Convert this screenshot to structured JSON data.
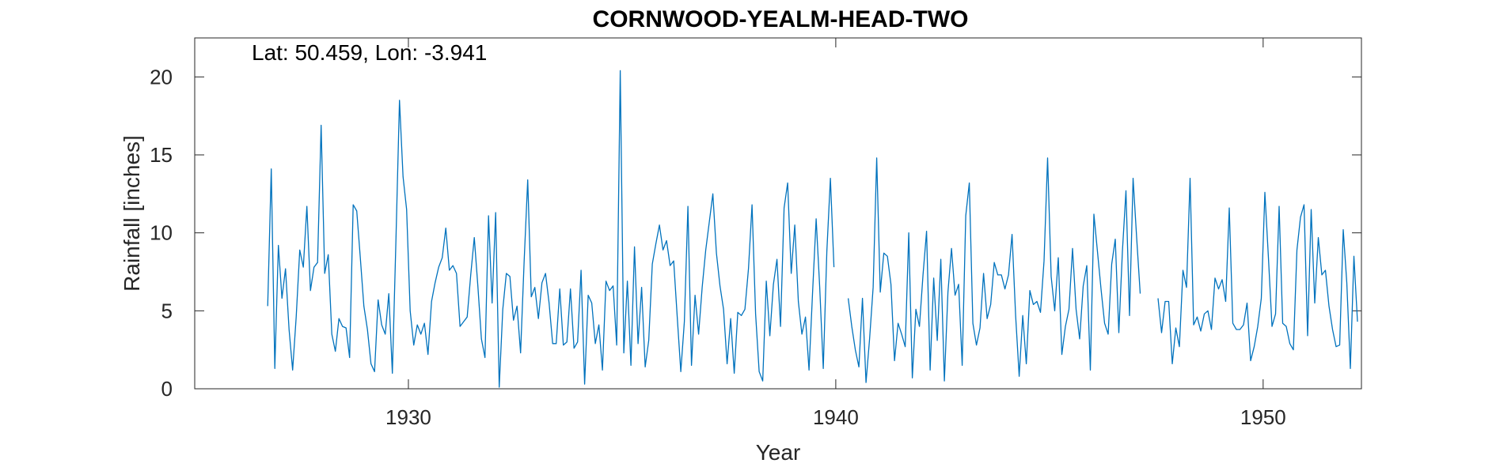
{
  "chart_data": {
    "type": "line",
    "title": "CORNWOOD-YEALM-HEAD-TWO",
    "annotation": "Lat: 50.459, Lon: -3.941",
    "xlabel": "Year",
    "ylabel": "Rainfall [inches]",
    "xlim": [
      1925.0,
      1952.3
    ],
    "ylim": [
      0,
      22.5
    ],
    "xticks": [
      1930,
      1940,
      1950
    ],
    "yticks": [
      0,
      5,
      10,
      15,
      20
    ],
    "grid": false,
    "box": true,
    "line_color": "#0072BD",
    "series": [
      {
        "start_year": 1926.708,
        "step_years": 0.08333,
        "values": [
          5.3,
          14.1,
          1.3,
          9.2,
          5.8,
          7.7,
          3.8,
          1.2,
          4.6,
          8.9,
          7.8,
          11.7,
          6.3,
          7.8,
          8.1,
          16.9,
          7.4,
          8.6,
          3.5,
          2.4,
          4.5,
          4.0,
          3.9,
          2.0,
          11.8,
          11.4,
          8.4,
          5.3,
          3.8,
          1.6,
          1.1,
          5.7,
          4.1,
          3.5,
          6.1,
          1.0,
          9.5,
          18.5,
          13.6,
          11.5,
          5.0,
          2.8,
          4.1,
          3.5,
          4.2,
          2.2,
          5.6,
          6.8,
          7.8,
          8.4,
          10.3,
          7.6,
          7.9,
          7.4,
          4.0,
          4.3,
          4.6,
          7.3,
          9.7,
          6.6,
          3.2,
          2.0,
          11.1,
          5.5,
          11.3,
          0.1,
          5.1,
          7.4,
          7.2,
          4.4,
          5.3,
          2.3,
          8.2,
          13.4,
          5.9,
          6.5,
          4.5,
          6.8,
          7.4,
          5.5,
          2.9,
          2.9,
          6.4,
          2.8,
          3.0,
          6.4,
          2.6,
          3.0,
          7.6,
          0.3,
          6.0,
          5.5,
          2.9,
          4.1,
          1.2,
          6.9,
          6.3,
          6.6,
          2.8,
          20.4,
          2.3,
          6.9,
          1.5,
          9.1,
          2.9,
          6.5,
          1.4,
          3.1,
          8.0,
          9.3,
          10.5,
          8.9,
          9.5,
          7.9,
          8.2,
          4.6,
          1.1,
          4.3,
          11.7,
          1.5,
          6.0,
          3.5,
          6.5,
          8.9,
          10.7,
          12.5,
          8.7,
          6.6,
          5.1,
          1.6,
          4.5,
          1.0,
          4.9,
          4.7,
          5.1,
          7.7,
          11.8,
          4.8,
          1.1,
          0.5,
          6.9,
          3.4,
          6.7,
          8.3,
          4.0,
          11.6,
          13.2,
          7.4,
          10.5,
          5.6,
          3.5,
          4.6,
          1.2,
          6.2,
          10.9,
          6.5,
          1.3,
          8.8,
          13.5,
          7.8,
          null,
          null,
          null,
          5.8,
          4.0,
          2.5,
          1.4,
          5.8,
          0.4,
          3.2,
          6.5,
          14.8,
          6.2,
          8.7,
          8.5,
          6.7,
          1.8,
          4.2,
          3.5,
          2.7,
          10.0,
          0.7,
          5.1,
          4.0,
          7.3,
          10.1,
          1.2,
          7.1,
          3.1,
          8.3,
          0.5,
          6.2,
          9.0,
          6.0,
          6.7,
          1.5,
          11.1,
          13.2,
          4.2,
          2.8,
          3.9,
          7.4,
          4.5,
          5.4,
          8.1,
          7.3,
          7.3,
          6.4,
          7.3,
          9.9,
          4.7,
          0.8,
          4.7,
          1.6,
          6.3,
          5.4,
          5.6,
          4.9,
          8.2,
          14.8,
          7.2,
          5.0,
          8.4,
          2.2,
          4.0,
          5.1,
          9.0,
          5.1,
          3.2,
          6.6,
          7.9,
          1.2,
          11.2,
          8.8,
          6.4,
          4.2,
          3.5,
          8.0,
          9.6,
          3.6,
          8.8,
          12.7,
          4.7,
          13.5,
          9.7,
          6.1,
          null,
          null,
          null,
          null,
          5.8,
          3.6,
          5.6,
          5.6,
          1.6,
          3.9,
          2.7,
          7.6,
          6.5,
          13.5,
          4.1,
          4.6,
          3.7,
          4.8,
          5.0,
          3.8,
          7.1,
          6.4,
          7.0,
          5.6,
          11.6,
          4.2,
          3.8,
          3.8,
          4.1,
          5.5,
          1.8,
          2.7,
          4.0,
          5.8,
          12.6,
          8.4,
          4.0,
          4.8,
          11.7,
          4.2,
          4.0,
          2.9,
          2.5,
          8.9,
          11.0,
          11.8,
          3.4,
          11.5,
          5.5,
          9.7,
          7.3,
          7.6,
          5.3,
          3.8,
          2.7,
          2.8,
          10.2,
          6.8,
          1.3,
          8.5,
          4.3
        ]
      }
    ]
  }
}
